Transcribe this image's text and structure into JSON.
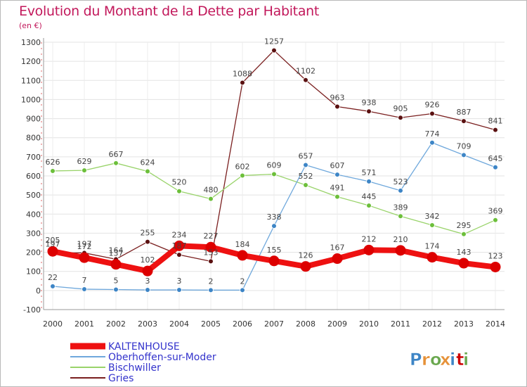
{
  "header": {
    "title": "Evolution du Montant de la Dette par Habitant",
    "subtitle": "(en €)"
  },
  "logo": {
    "text": "Proxiti"
  },
  "chart_data": {
    "type": "line",
    "title": "Evolution du Montant de la Dette par Habitant",
    "subtitle": "(en €)",
    "xlabel": "",
    "ylabel": "",
    "ylim": [
      -100,
      1300
    ],
    "yticks": [
      -100,
      0,
      100,
      200,
      300,
      400,
      500,
      600,
      700,
      800,
      900,
      1000,
      1100,
      1200,
      1300
    ],
    "grid": true,
    "legend_position": "bottom-left",
    "x": [
      2000,
      2001,
      2002,
      2003,
      2004,
      2005,
      2006,
      2007,
      2008,
      2009,
      2010,
      2011,
      2012,
      2013,
      2014
    ],
    "series": [
      {
        "name": "Gries",
        "color": "#7a1f1f",
        "marker_color": "#5a1010",
        "values": [
          197,
          197,
          164,
          255,
          187,
          153,
          1088,
          1257,
          1102,
          963,
          938,
          905,
          926,
          887,
          841
        ],
        "labels": [
          "197",
          "197",
          "164",
          "255",
          "187",
          "153",
          "1088",
          "1257",
          "1102",
          "963",
          "938",
          "905",
          "926",
          "887",
          "841"
        ]
      },
      {
        "name": "Bischwiller",
        "color": "#99d36a",
        "marker_color": "#6cbf3a",
        "values": [
          626,
          629,
          667,
          624,
          520,
          480,
          602,
          609,
          552,
          491,
          445,
          389,
          342,
          295,
          369
        ],
        "labels": [
          "626",
          "629",
          "667",
          "624",
          "520",
          "480",
          "602",
          "609",
          "552",
          "491",
          "445",
          "389",
          "342",
          "295",
          "369"
        ]
      },
      {
        "name": "Oberhoffen-sur-Moder",
        "color": "#6fa8dc",
        "marker_color": "#3d85c6",
        "values": [
          22,
          7,
          5,
          3,
          3,
          2,
          2,
          338,
          657,
          607,
          571,
          523,
          774,
          709,
          645
        ],
        "labels": [
          "22",
          "7",
          "5",
          "3",
          "3",
          "2",
          "2",
          "338",
          "657",
          "607",
          "571",
          "523",
          "774",
          "709",
          "645"
        ]
      },
      {
        "name": "KALTENHOUSE",
        "color": "#ee1111",
        "marker_color": "#dd0000",
        "values": [
          205,
          172,
          137,
          102,
          234,
          227,
          184,
          155,
          126,
          167,
          212,
          210,
          174,
          143,
          123
        ],
        "labels": [
          "205",
          "172",
          "137",
          "102",
          "234",
          "227",
          "184",
          "155",
          "126",
          "167",
          "212",
          "210",
          "174",
          "143",
          "123"
        ]
      }
    ],
    "legend": [
      {
        "name": "KALTENHOUSE",
        "color": "#ee1111",
        "text_color": "#3333cc"
      },
      {
        "name": "Oberhoffen-sur-Moder",
        "color": "#6fa8dc",
        "text_color": "#3333cc"
      },
      {
        "name": "Bischwiller",
        "color": "#99d36a",
        "text_color": "#3333cc"
      },
      {
        "name": "Gries",
        "color": "#7a1f1f",
        "text_color": "#3333cc"
      }
    ]
  }
}
